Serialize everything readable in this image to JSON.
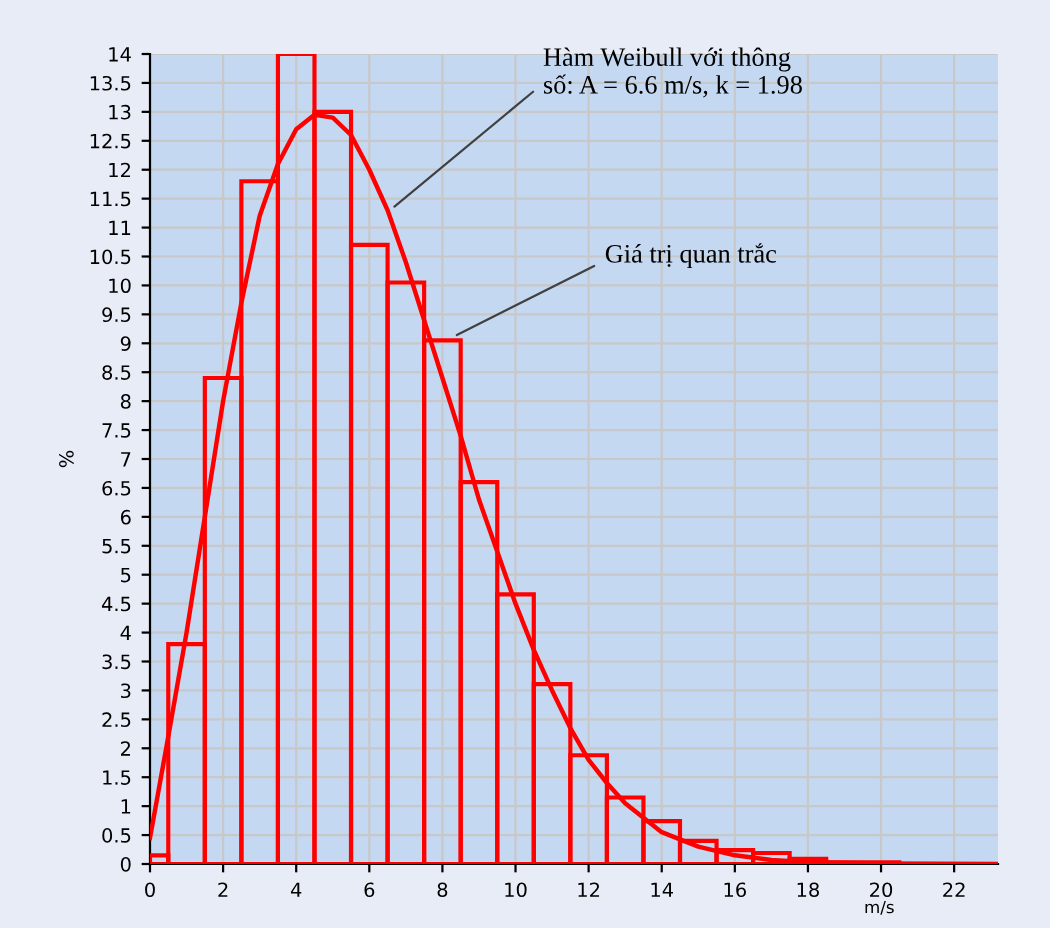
{
  "chart_data": {
    "type": "histogram",
    "xlabel": "m/s",
    "ylabel": "%",
    "xlim": [
      0,
      23.2
    ],
    "ylim": [
      0,
      14
    ],
    "xticks": [
      0,
      2,
      4,
      6,
      8,
      10,
      12,
      14,
      16,
      18,
      20,
      22
    ],
    "yticks": [
      0,
      0.5,
      1,
      1.5,
      2,
      2.5,
      3,
      3.5,
      4,
      4.5,
      5,
      5.5,
      6,
      6.5,
      7,
      7.5,
      8,
      8.5,
      9,
      9.5,
      10,
      10.5,
      11,
      11.5,
      12,
      12.5,
      13,
      13.5,
      14
    ],
    "grid": true,
    "legend": false,
    "series": [
      {
        "color": "#ff0000",
        "bins": [
          0,
          0.5,
          1.5,
          2.5,
          3.5,
          4.5,
          5.5,
          6.5,
          7.5,
          8.5,
          9.5,
          10.5,
          11.5,
          12.5,
          13.5,
          14.5,
          15.5,
          16.5,
          17.5,
          18.5,
          20.5
        ],
        "values": [
          0.15,
          3.8,
          8.4,
          11.8,
          14,
          13.0,
          10.7,
          10.05,
          9.05,
          6.6,
          4.66,
          3.11,
          1.88,
          1.15,
          0.74,
          0.4,
          0.24,
          0.19,
          0.09,
          0.03
        ]
      },
      {
        "type": "line",
        "color": "#ff0000",
        "x": [
          0,
          0.5,
          1,
          1.5,
          2,
          2.5,
          3,
          3.5,
          4,
          4.5,
          5,
          5.5,
          6,
          6.5,
          7,
          7.5,
          8,
          8.5,
          9,
          9.5,
          10,
          10.5,
          11,
          11.5,
          12,
          12.5,
          13,
          14,
          15,
          16,
          17,
          18,
          20,
          23.2
        ],
        "values": [
          0.45,
          2.2,
          4.0,
          6.0,
          8.0,
          9.7,
          11.2,
          12.1,
          12.7,
          12.95,
          12.9,
          12.6,
          12.0,
          11.3,
          10.4,
          9.4,
          8.4,
          7.4,
          6.3,
          5.4,
          4.5,
          3.7,
          3.0,
          2.35,
          1.8,
          1.4,
          1.05,
          0.55,
          0.3,
          0.15,
          0.07,
          0.03,
          0.01,
          0
        ]
      }
    ],
    "annotations": [
      {
        "text": "Hàm Weibull với thông\nsố: A = 6.6 m/s, k = 1.98",
        "x": 6.57,
        "y": 11.3
      },
      {
        "text": "Giá trị quan trắc",
        "x": 8.26,
        "y": 9.1
      }
    ]
  }
}
